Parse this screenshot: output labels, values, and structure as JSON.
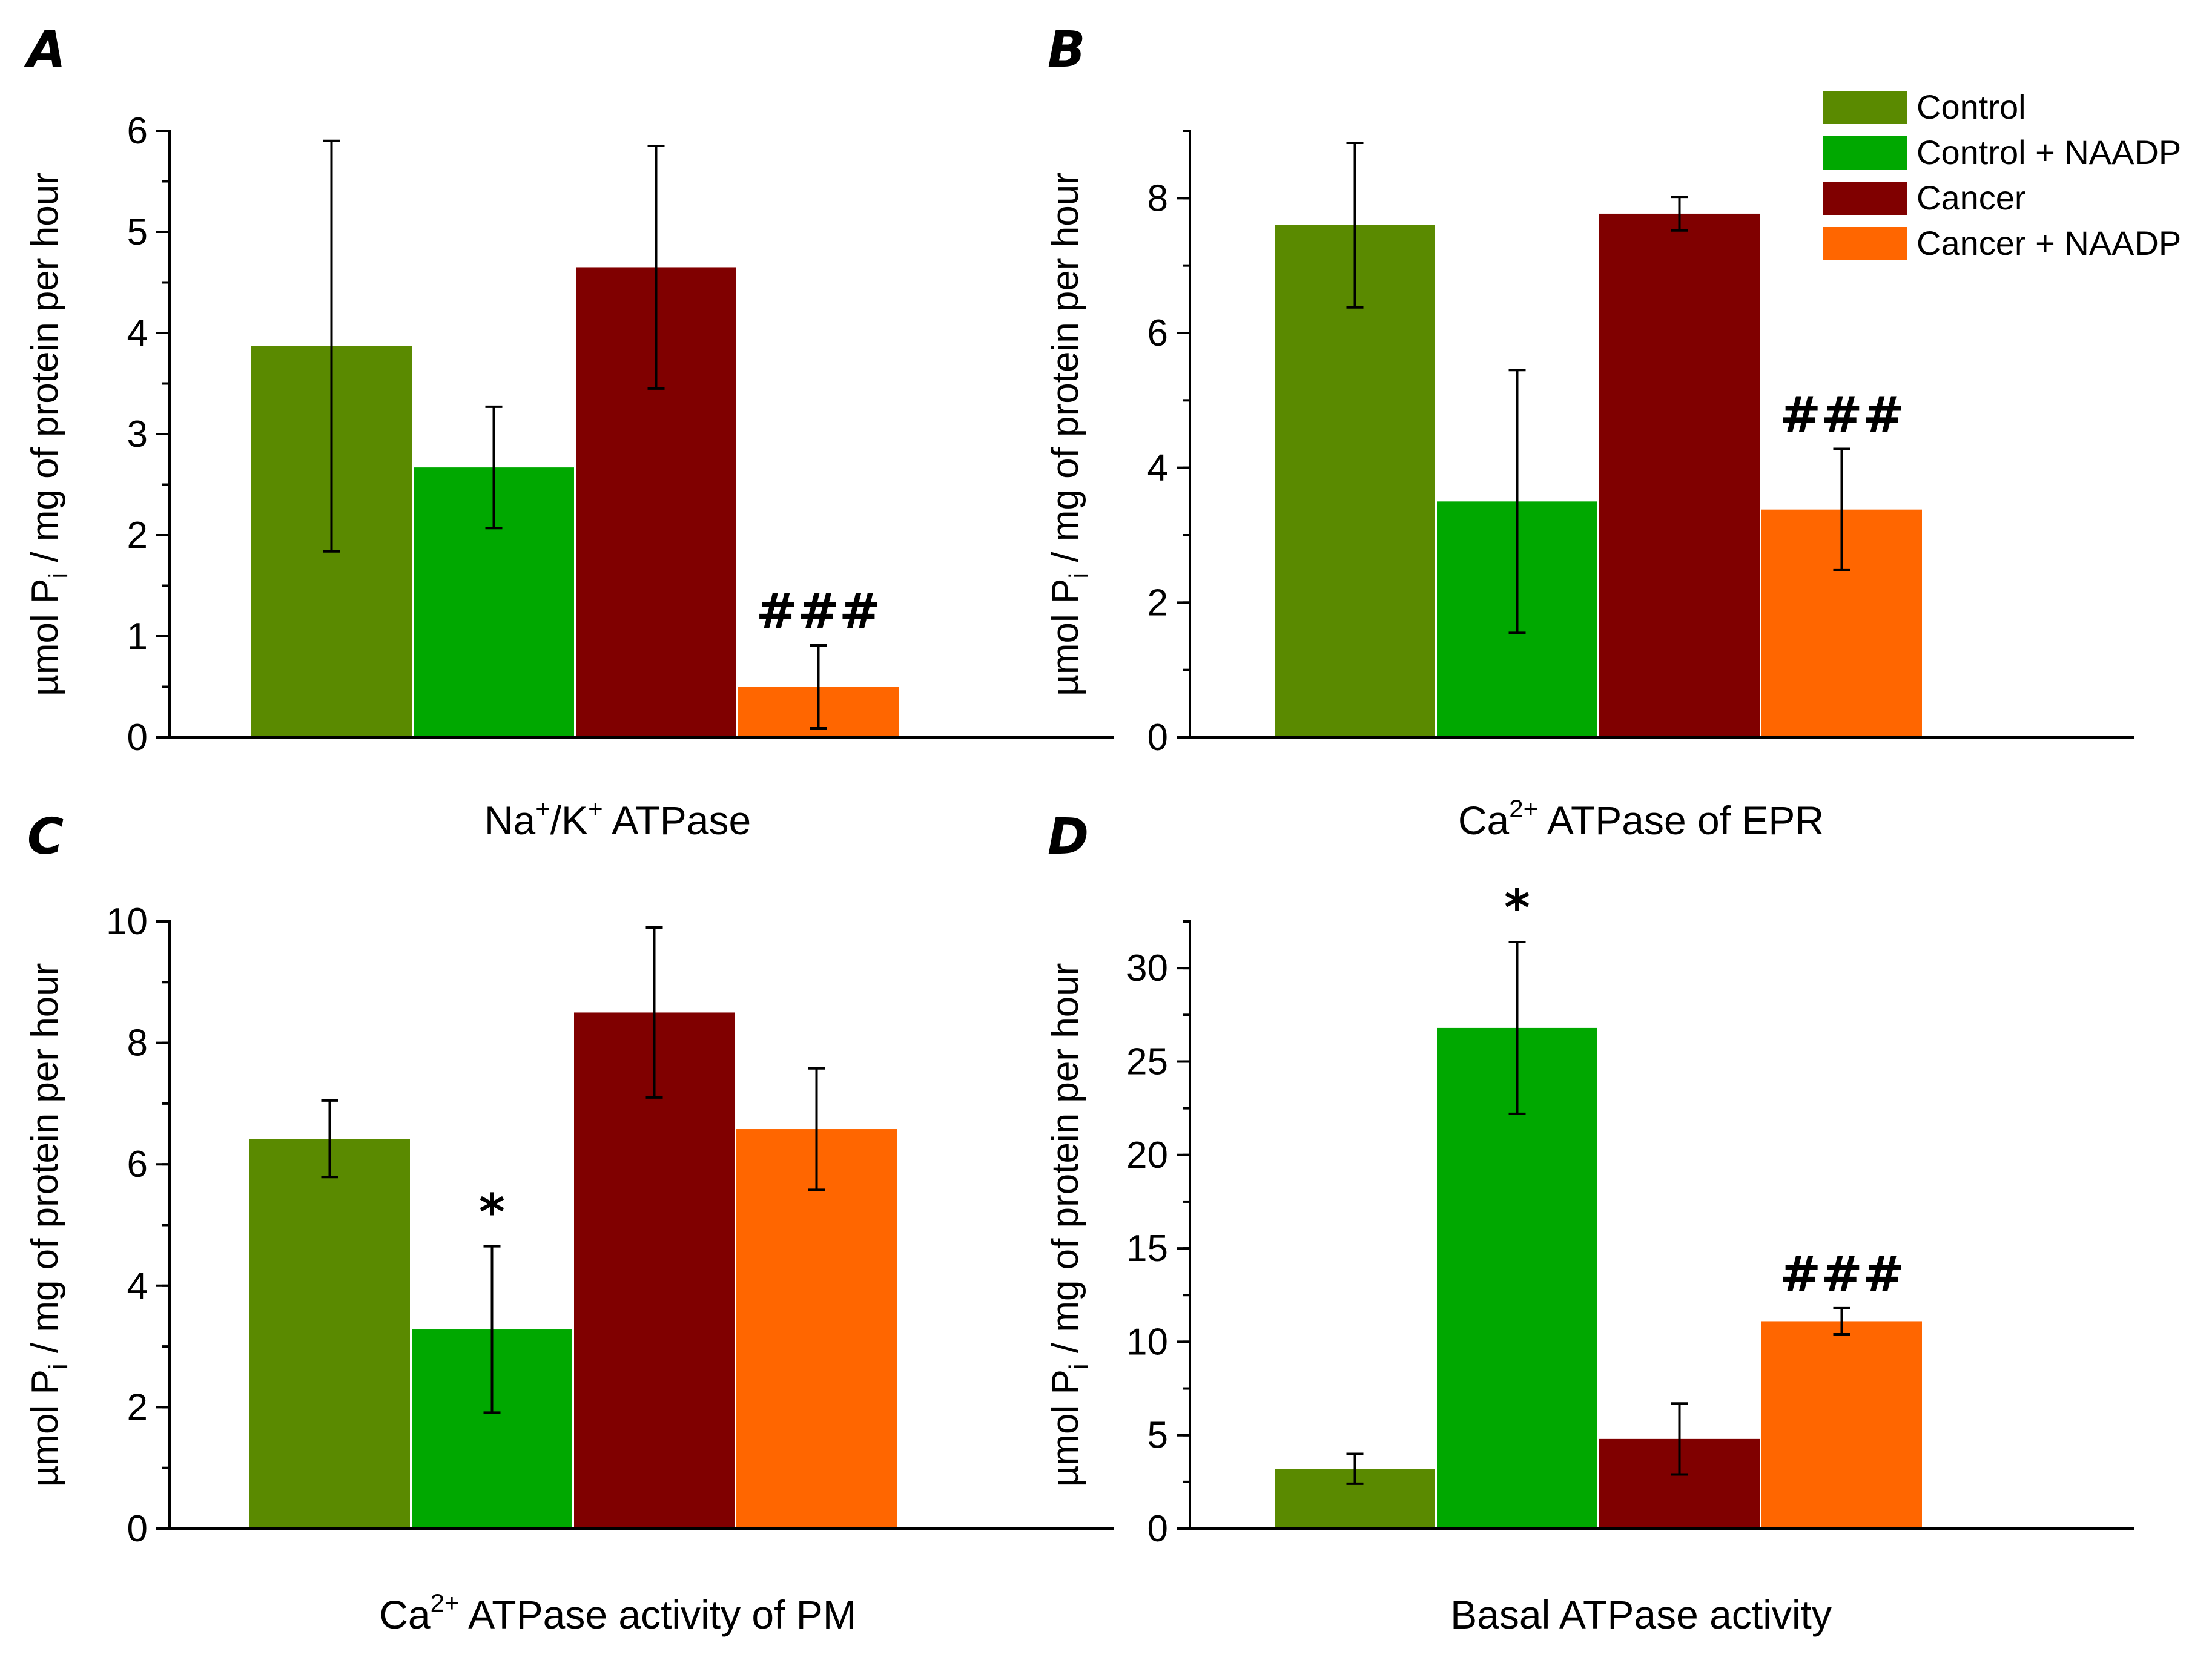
{
  "legend": {
    "entries": [
      {
        "label": "Control",
        "color": "#5a8a00"
      },
      {
        "label": "Control + NAADP",
        "color": "#00a800"
      },
      {
        "label": "Cancer",
        "color": "#800000"
      },
      {
        "label": "Cancer + NAADP",
        "color": "#ff6600"
      }
    ]
  },
  "chart_data": [
    {
      "type": "bar",
      "panel": "A",
      "ylabel_main": "µmol P",
      "ylabel_sub": "i",
      "ylabel_rest": " / mg of protein per hour",
      "xlabel_parts": [
        "Na",
        "+",
        "/K",
        "+",
        " ATPase"
      ],
      "ylim": [
        0,
        6
      ],
      "yticks": [
        0,
        1,
        2,
        3,
        4,
        5,
        6
      ],
      "tick_labels": [
        "0",
        "1",
        "2",
        "3",
        "4",
        "5",
        "6"
      ],
      "minor_step": 0.5,
      "series": [
        {
          "name": "Control",
          "value": 3.87,
          "err": 2.03,
          "annotation": ""
        },
        {
          "name": "Control + NAADP",
          "value": 2.67,
          "err": 0.6,
          "annotation": ""
        },
        {
          "name": "Cancer",
          "value": 4.65,
          "err": 1.2,
          "annotation": ""
        },
        {
          "name": "Cancer + NAADP",
          "value": 0.5,
          "err": 0.41,
          "annotation": "###"
        }
      ]
    },
    {
      "type": "bar",
      "panel": "B",
      "ylabel_main": "µmol P",
      "ylabel_sub": "i",
      "ylabel_rest": " / mg of protein per hour",
      "xlabel_parts": [
        "Ca",
        "2+",
        " ATPase of EPR"
      ],
      "ylim": [
        0,
        9
      ],
      "yticks": [
        0,
        2,
        4,
        6,
        8
      ],
      "tick_labels": [
        "0",
        "2",
        "4",
        "6",
        "8"
      ],
      "minor_step": 1,
      "series": [
        {
          "name": "Control",
          "value": 7.6,
          "err": 1.22,
          "annotation": ""
        },
        {
          "name": "Control + NAADP",
          "value": 3.5,
          "err": 1.95,
          "annotation": ""
        },
        {
          "name": "Cancer",
          "value": 7.77,
          "err": 0.25,
          "annotation": ""
        },
        {
          "name": "Cancer + NAADP",
          "value": 3.38,
          "err": 0.9,
          "annotation": "###"
        }
      ]
    },
    {
      "type": "bar",
      "panel": "C",
      "ylabel_main": "µmol P",
      "ylabel_sub": "i",
      "ylabel_rest": " / mg of protein per hour",
      "xlabel_parts": [
        "Ca",
        "2+",
        " ATPase activity of PM"
      ],
      "ylim": [
        0,
        10
      ],
      "yticks": [
        0,
        2,
        4,
        6,
        8,
        10
      ],
      "tick_labels": [
        "0",
        "2",
        "4",
        "6",
        "8",
        "10"
      ],
      "minor_step": 1,
      "series": [
        {
          "name": "Control",
          "value": 6.42,
          "err": 0.63,
          "annotation": ""
        },
        {
          "name": "Control + NAADP",
          "value": 3.28,
          "err": 1.37,
          "annotation": "*"
        },
        {
          "name": "Cancer",
          "value": 8.5,
          "err": 1.4,
          "annotation": ""
        },
        {
          "name": "Cancer + NAADP",
          "value": 6.58,
          "err": 1.0,
          "annotation": ""
        }
      ]
    },
    {
      "type": "bar",
      "panel": "D",
      "ylabel_main": "µmol P",
      "ylabel_sub": "i",
      "ylabel_rest": " / mg of protein per hour",
      "xlabel_parts": [
        "Basal ATPase activity"
      ],
      "ylim": [
        0,
        32.5
      ],
      "yticks": [
        0,
        5,
        10,
        15,
        20,
        25,
        30
      ],
      "tick_labels": [
        "0",
        "5",
        "10",
        "15",
        "20",
        "25",
        "30"
      ],
      "minor_step": 2.5,
      "series": [
        {
          "name": "Control",
          "value": 3.2,
          "err": 0.8,
          "annotation": ""
        },
        {
          "name": "Control + NAADP",
          "value": 26.8,
          "err": 4.6,
          "annotation": "*"
        },
        {
          "name": "Cancer",
          "value": 4.8,
          "err": 1.9,
          "annotation": ""
        },
        {
          "name": "Cancer + NAADP",
          "value": 11.1,
          "err": 0.7,
          "annotation": "###"
        }
      ]
    }
  ]
}
